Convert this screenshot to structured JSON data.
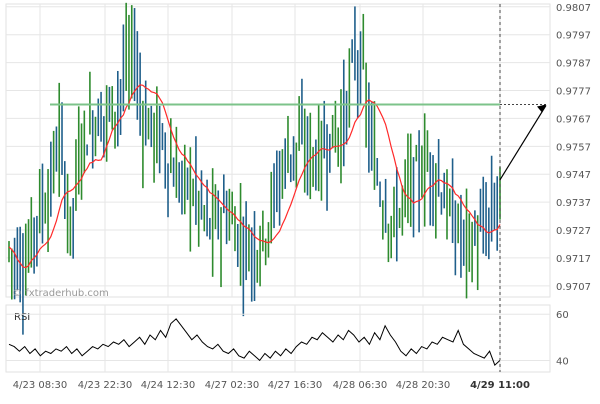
{
  "chart_data": {
    "type": "candlestick",
    "watermark": "© fxtraderhub.com",
    "x_tick_labels": [
      "4/23 08:30",
      "4/23 22:30",
      "4/24 12:30",
      "4/27 02:30",
      "4/27 16:30",
      "4/28 06:30",
      "4/28 20:30",
      "4/29 11:00"
    ],
    "y_tick_labels": [
      "0.9807",
      "0.9797",
      "0.9787",
      "0.9777",
      "0.9767",
      "0.9757",
      "0.9747",
      "0.9737",
      "0.9727",
      "0.9717",
      "0.9707"
    ],
    "ylim": [
      0.9703,
      0.9808
    ],
    "resistance_level": 0.9772,
    "current_price_approx": 0.9745,
    "projected_target": 0.9772,
    "ma_visible": true,
    "rsi": {
      "label": "RSI",
      "tick_labels": [
        "60",
        "40"
      ],
      "ylim": [
        35,
        64
      ],
      "values_approx": [
        47,
        46,
        44,
        46,
        43,
        45,
        42,
        44,
        43,
        45,
        44,
        46,
        43,
        45,
        42,
        44,
        46,
        45,
        47,
        46,
        48,
        47,
        49,
        46,
        48,
        50,
        47,
        51,
        49,
        53,
        50,
        56,
        58,
        55,
        52,
        49,
        51,
        48,
        46,
        45,
        47,
        44,
        43,
        45,
        42,
        41,
        44,
        42,
        40,
        43,
        41,
        44,
        42,
        45,
        43,
        46,
        48,
        47,
        50,
        49,
        52,
        50,
        48,
        51,
        49,
        53,
        51,
        48,
        50,
        47,
        52,
        49,
        55,
        51,
        48,
        44,
        42,
        45,
        43,
        46,
        45,
        48,
        47,
        50,
        49,
        48,
        53,
        47,
        45,
        43,
        42,
        41,
        44,
        38,
        40
      ]
    },
    "colors": {
      "bull": "#2e8b2e",
      "bear": "#1f5f8b",
      "ma": "#ff2a2a",
      "resistance": "#7cc38a",
      "projection": "#000000",
      "grid": "#e6e6e6",
      "axis_text": "#555555"
    }
  }
}
